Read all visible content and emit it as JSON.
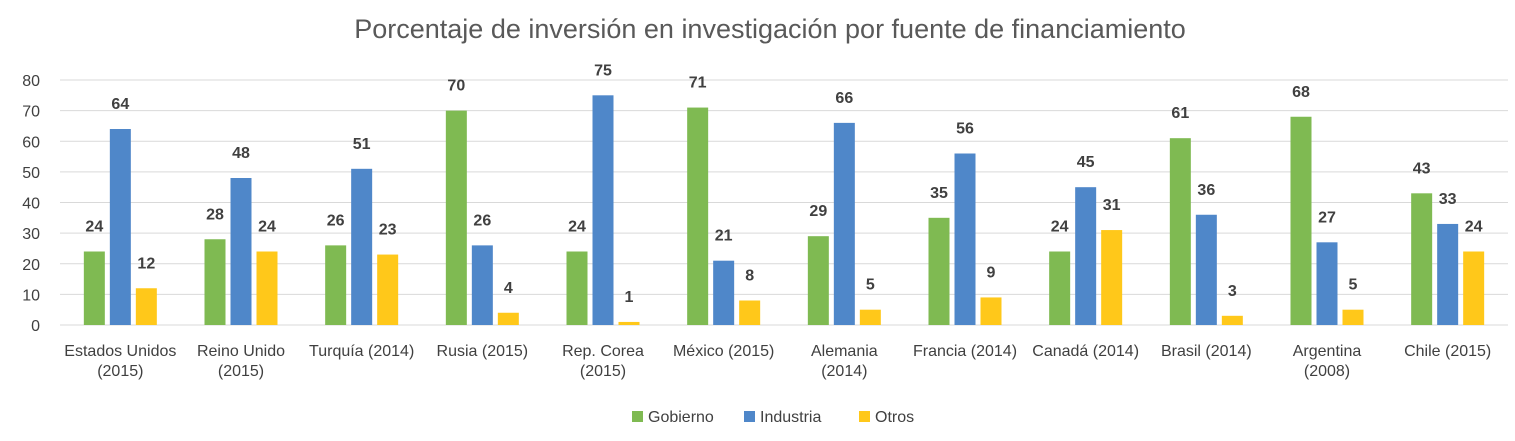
{
  "chart_data": {
    "type": "bar",
    "title": "Porcentaje de inversión en investigación por fuente de financiamiento",
    "categories": [
      [
        "Estados Unidos",
        "(2015)"
      ],
      [
        "Reino Unido",
        "(2015)"
      ],
      [
        "Turquía (2014)"
      ],
      [
        "Rusia (2015)"
      ],
      [
        "Rep. Corea",
        "(2015)"
      ],
      [
        "México (2015)"
      ],
      [
        "Alemania",
        "(2014)"
      ],
      [
        "Francia (2014)"
      ],
      [
        "Canadá (2014)"
      ],
      [
        "Brasil (2014)"
      ],
      [
        "Argentina",
        "(2008)"
      ],
      [
        "Chile (2015)"
      ]
    ],
    "series": [
      {
        "name": "Gobierno",
        "color": "#7fba52",
        "values": [
          24,
          28,
          26,
          70,
          24,
          71,
          29,
          35,
          24,
          61,
          68,
          43
        ]
      },
      {
        "name": "Industria",
        "color": "#4f87c9",
        "values": [
          64,
          48,
          51,
          26,
          75,
          21,
          66,
          56,
          45,
          36,
          27,
          33
        ]
      },
      {
        "name": "Otros",
        "color": "#ffc81a",
        "values": [
          12,
          24,
          23,
          4,
          1,
          8,
          5,
          9,
          31,
          3,
          5,
          24
        ]
      }
    ],
    "ylim": [
      0,
      80
    ],
    "yticks": [
      0,
      10,
      20,
      30,
      40,
      50,
      60,
      70,
      80
    ],
    "xlabel": "",
    "ylabel": "",
    "grid": true,
    "legend_position": "bottom-center"
  }
}
